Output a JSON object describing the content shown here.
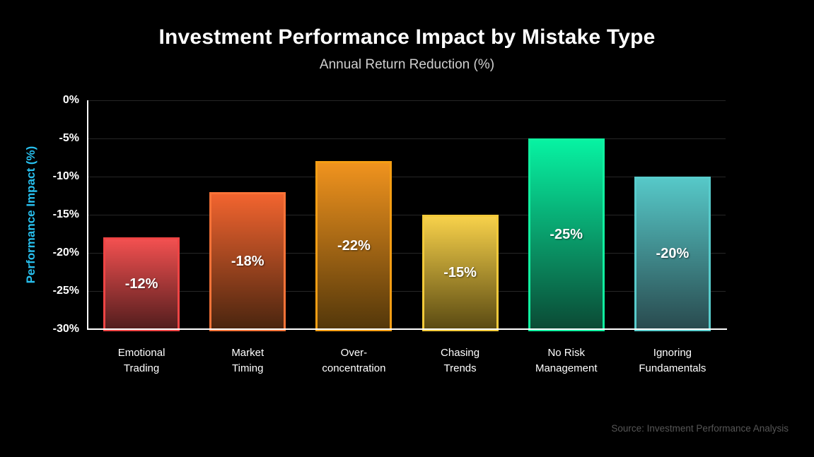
{
  "chart_data": {
    "type": "bar",
    "title": "Investment Performance Impact by Mistake Type",
    "subtitle": "Annual Return Reduction (%)",
    "ylabel": "Performance Impact (%)",
    "source": "Source: Investment Performance Analysis",
    "ylim": [
      -30,
      0
    ],
    "yticks": [
      "0%",
      "-5%",
      "-10%",
      "-15%",
      "-20%",
      "-25%",
      "-30%"
    ],
    "grid": true,
    "legend_position": "none",
    "baseline": -30,
    "categories": [
      "Emotional Trading",
      "Market Timing",
      "Over-concentration",
      "Chasing Trends",
      "No Risk Management",
      "Ignoring Fundamentals"
    ],
    "category_lines": [
      [
        "Emotional",
        "Trading"
      ],
      [
        "Market",
        "Timing"
      ],
      [
        "Over-",
        "concentration"
      ],
      [
        "Chasing",
        "Trends"
      ],
      [
        "No Risk",
        "Management"
      ],
      [
        "Ignoring",
        "Fundamentals"
      ]
    ],
    "values": [
      -12,
      -18,
      -22,
      -15,
      -25,
      -20
    ],
    "bar_labels": [
      "-12%",
      "-18%",
      "-22%",
      "-15%",
      "-25%",
      "-20%"
    ],
    "bar_colors": [
      {
        "border": "#ef4444",
        "top": "#f25050",
        "bottom": "#521d1d"
      },
      {
        "border": "#f97338",
        "top": "#f2642f",
        "bottom": "#4a250f"
      },
      {
        "border": "#f59e14",
        "top": "#f0931e",
        "bottom": "#53370a"
      },
      {
        "border": "#f3ca3a",
        "top": "#f7d14a",
        "bottom": "#5a4a12"
      },
      {
        "border": "#10f0a0",
        "top": "#07f2a2",
        "bottom": "#0b4a35"
      },
      {
        "border": "#58cccc",
        "top": "#56c8c8",
        "bottom": "#294a4e"
      }
    ],
    "colors": {
      "background": "#000000",
      "title": "#ffffff",
      "subtitle": "#cfcfcf",
      "ylabel": "#28c0ee",
      "tick_label": "#ffffff",
      "grid": "#262626",
      "axis": "#ffffff",
      "value_label": "#ffffff",
      "source": "#565656"
    }
  }
}
